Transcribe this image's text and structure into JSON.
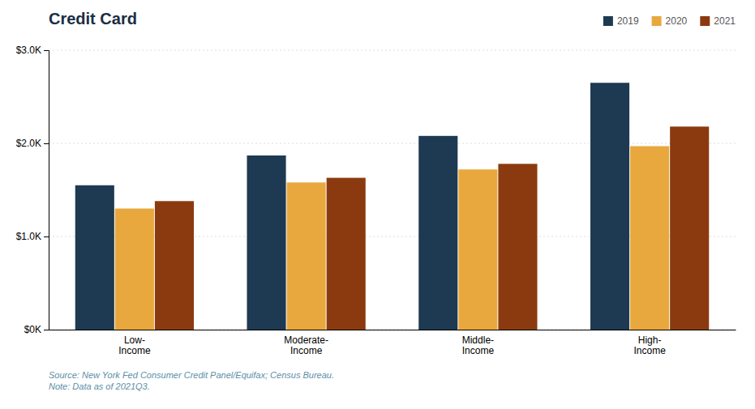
{
  "chart_data": {
    "type": "bar",
    "title": "Credit Card",
    "categories": [
      "Low-\nIncome",
      "Moderate-\nIncome",
      "Middle-\nIncome",
      "High-\nIncome"
    ],
    "series": [
      {
        "name": "2019",
        "color": "#1e3a52",
        "values": [
          1550,
          1870,
          2080,
          2650
        ]
      },
      {
        "name": "2020",
        "color": "#e8a83e",
        "values": [
          1300,
          1580,
          1720,
          1970
        ]
      },
      {
        "name": "2021",
        "color": "#8b3a0f",
        "values": [
          1380,
          1630,
          1780,
          2180
        ]
      }
    ],
    "ylim": [
      0,
      3000
    ],
    "yticks": [
      {
        "value": 0,
        "label": "$0K"
      },
      {
        "value": 1000,
        "label": "$1.0K"
      },
      {
        "value": 2000,
        "label": "$2.0K"
      },
      {
        "value": 3000,
        "label": "$3.0K"
      }
    ],
    "grid": true,
    "legend": "upper right",
    "annotations": [
      "Source: New York Fed Consumer Credit Panel/Equifax; Census Bureau.\nNote: Data as of 2021Q3."
    ]
  }
}
